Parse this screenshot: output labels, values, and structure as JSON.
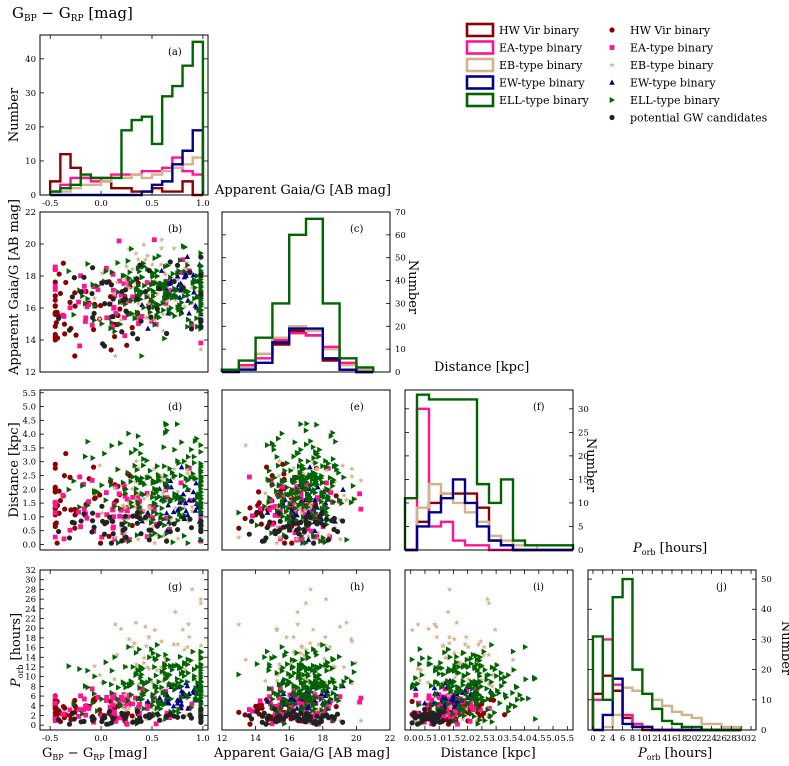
{
  "colors": {
    "hw": "#8b0000",
    "ea": "#ff1493",
    "eb": "#d2b48c",
    "ew": "#00008b",
    "ell": "#006400",
    "gw": "#222222"
  },
  "legend": {
    "hist": [
      "HW Vir binary",
      "EA-type binary",
      "EB-type binary",
      "EW-type binary",
      "ELL-type binary"
    ],
    "scatter": [
      "HW Vir binary",
      "EA-type binary",
      "EB-type binary",
      "EW-type binary",
      "ELL-type binary",
      "potential GW candidates"
    ]
  },
  "labels": {
    "top_title": "G_BP - G_RP [mag]",
    "col2_title": "Apparent Gaia/G [AB mag]",
    "col3_title": "Distance [kpc]",
    "col4_title": "P_orb [hours]",
    "ylabel_number": "Number",
    "ylabel_gmag": "Apparent Gaia/G [AB mag]",
    "ylabel_dist": "Distance [kpc]",
    "ylabel_porb": "P_orb [hours]",
    "xlabel_color": "G_BP - G_RP [mag]",
    "xlabel_gmag": "Apparent Gaia/G [AB mag]",
    "xlabel_dist": "Distance [kpc]",
    "xlabel_porb": "P_orb [hours]"
  },
  "chart_data": [
    {
      "panel": "(a)",
      "type": "histogram",
      "x_range": [
        -0.6,
        1.05
      ],
      "y_range": [
        0,
        47
      ],
      "x_ticks": [
        "-0.5",
        "0.0",
        "0.5",
        "1.0"
      ],
      "y_ticks": [
        "0",
        "10",
        "20",
        "30",
        "40"
      ],
      "bin_edges": [
        -0.5,
        -0.4,
        -0.3,
        -0.2,
        -0.1,
        0.0,
        0.1,
        0.2,
        0.3,
        0.4,
        0.5,
        0.6,
        0.7,
        0.8,
        0.9,
        1.0
      ],
      "series": [
        {
          "key": "hw",
          "values": [
            4,
            12,
            8,
            5,
            5,
            4,
            2,
            2,
            1,
            1,
            2,
            1,
            1,
            4,
            0
          ]
        },
        {
          "key": "ea",
          "values": [
            1,
            3,
            5,
            5,
            4,
            5,
            6,
            6,
            6,
            7,
            7,
            8,
            11,
            7,
            6
          ]
        },
        {
          "key": "eb",
          "values": [
            1,
            1,
            2,
            3,
            3,
            4,
            5,
            5,
            6,
            5,
            6,
            7,
            8,
            9,
            11
          ]
        },
        {
          "key": "ew",
          "values": [
            0,
            0,
            0,
            0,
            0,
            0,
            0,
            0,
            0,
            1,
            3,
            4,
            9,
            13,
            19
          ]
        },
        {
          "key": "ell",
          "values": [
            1,
            2,
            3,
            6,
            5,
            5,
            5,
            19,
            22,
            23,
            15,
            29,
            32,
            38,
            45
          ]
        }
      ]
    },
    {
      "panel": "(b)",
      "type": "scatter",
      "x_range": [
        -0.6,
        1.05
      ],
      "y_range": [
        12,
        22
      ],
      "x_ticks": [],
      "y_ticks": [
        "12",
        "14",
        "16",
        "18",
        "20",
        "22"
      ]
    },
    {
      "panel": "(c)",
      "type": "histogram",
      "x_range": [
        12,
        22
      ],
      "y_range": [
        0,
        70
      ],
      "x_ticks": [],
      "y_ticks": [
        "0",
        "10",
        "20",
        "30",
        "40",
        "50",
        "60",
        "70"
      ],
      "bin_edges": [
        12,
        13,
        14,
        15,
        16,
        17,
        18,
        19,
        20,
        21
      ],
      "series": [
        {
          "key": "hw",
          "values": [
            1,
            3,
            8,
            12,
            18,
            16,
            5,
            1,
            0
          ]
        },
        {
          "key": "ea",
          "values": [
            1,
            3,
            6,
            14,
            17,
            16,
            11,
            4,
            1
          ]
        },
        {
          "key": "eb",
          "values": [
            1,
            2,
            8,
            15,
            20,
            18,
            10,
            3,
            1
          ]
        },
        {
          "key": "ew",
          "values": [
            0,
            1,
            4,
            13,
            19,
            19,
            6,
            1,
            0
          ]
        },
        {
          "key": "ell",
          "values": [
            1,
            5,
            15,
            30,
            60,
            67,
            30,
            6,
            2
          ]
        }
      ]
    },
    {
      "panel": "(d)",
      "type": "scatter",
      "x_range": [
        -0.6,
        1.05
      ],
      "y_range": [
        -0.2,
        5.6
      ],
      "x_ticks": [],
      "y_ticks": [
        "0.0",
        "0.5",
        "1.0",
        "1.5",
        "2.0",
        "2.5",
        "3.0",
        "3.5",
        "4.0",
        "4.5",
        "5.0",
        "5.5"
      ]
    },
    {
      "panel": "(e)",
      "type": "scatter",
      "x_range": [
        12,
        22
      ],
      "y_range": [
        -0.2,
        5.6
      ],
      "x_ticks": [],
      "y_ticks": []
    },
    {
      "panel": "(f)",
      "type": "histogram",
      "x_range": [
        0,
        5.6
      ],
      "y_range": [
        0,
        34
      ],
      "x_ticks": [],
      "y_ticks": [
        "0",
        "5",
        "10",
        "15",
        "20",
        "25",
        "30"
      ],
      "bin_edges": [
        0.0,
        0.4,
        0.8,
        1.2,
        1.6,
        2.0,
        2.4,
        2.8,
        3.2,
        3.6,
        4.0,
        4.4,
        4.8,
        5.2,
        5.6
      ],
      "series": [
        {
          "key": "hw",
          "values": [
            0,
            6,
            10,
            12,
            12,
            12,
            9,
            2,
            1,
            0,
            0,
            0,
            0,
            0
          ]
        },
        {
          "key": "ea",
          "values": [
            0,
            30,
            5,
            6,
            2,
            1,
            1,
            0,
            0,
            0,
            0,
            0,
            0,
            0
          ]
        },
        {
          "key": "eb",
          "values": [
            0,
            9,
            14,
            12,
            10,
            8,
            6,
            3,
            2,
            1,
            1,
            0,
            0,
            0
          ]
        },
        {
          "key": "ew",
          "values": [
            0,
            5,
            8,
            11,
            15,
            10,
            5,
            2,
            1,
            0,
            0,
            0,
            0,
            0
          ]
        },
        {
          "key": "ell",
          "values": [
            11,
            33,
            32,
            32,
            32,
            32,
            14,
            10,
            15,
            2,
            1,
            1,
            1,
            1
          ]
        }
      ]
    },
    {
      "panel": "(g)",
      "type": "scatter",
      "x_range": [
        -0.6,
        1.05
      ],
      "y_range": [
        -1,
        32
      ],
      "x_ticks": [
        "-0.5",
        "0.0",
        "0.5",
        "1.0"
      ],
      "y_ticks": [
        "0",
        "2",
        "4",
        "6",
        "8",
        "10",
        "12",
        "14",
        "16",
        "18",
        "20",
        "22",
        "24",
        "26",
        "28",
        "30",
        "32"
      ]
    },
    {
      "panel": "(h)",
      "type": "scatter",
      "x_range": [
        12,
        22
      ],
      "y_range": [
        -1,
        32
      ],
      "x_ticks": [
        "12",
        "14",
        "16",
        "18",
        "20",
        "22"
      ],
      "y_ticks": []
    },
    {
      "panel": "(i)",
      "type": "scatter",
      "x_range": [
        -0.2,
        5.7
      ],
      "y_range": [
        -1,
        32
      ],
      "x_ticks": [
        "0.0",
        "0.5",
        "1.0",
        "1.5",
        "2.0",
        "2.5",
        "3.0",
        "3.5",
        "4.0",
        "4.5",
        "5.0",
        "5.5"
      ],
      "y_ticks": []
    },
    {
      "panel": "(j)",
      "type": "histogram",
      "x_range": [
        -1,
        33
      ],
      "y_range": [
        0,
        53
      ],
      "x_ticks": [
        "0",
        "2",
        "4",
        "6",
        "8",
        "10",
        "12",
        "14",
        "16",
        "18",
        "20",
        "22",
        "24",
        "26",
        "28",
        "30",
        "32"
      ],
      "y_ticks": [
        "0",
        "10",
        "20",
        "30",
        "40",
        "50"
      ],
      "bin_edges": [
        0,
        2,
        4,
        6,
        8,
        10,
        12,
        14,
        16,
        18,
        20,
        22,
        24,
        26,
        28,
        30
      ],
      "series": [
        {
          "key": "hw",
          "values": [
            12,
            18,
            13,
            4,
            1,
            0,
            0,
            0,
            0,
            0,
            0,
            0,
            0,
            0,
            0
          ]
        },
        {
          "key": "ea",
          "values": [
            10,
            30,
            15,
            5,
            2,
            1,
            0,
            0,
            0,
            0,
            0,
            0,
            0,
            0,
            0
          ]
        },
        {
          "key": "eb",
          "values": [
            0,
            1,
            5,
            14,
            13,
            12,
            10,
            8,
            6,
            5,
            4,
            2,
            2,
            1,
            1
          ]
        },
        {
          "key": "ew",
          "values": [
            0,
            5,
            17,
            2,
            1,
            1,
            0,
            0,
            0,
            0,
            0,
            0,
            0,
            0,
            0
          ]
        },
        {
          "key": "ell",
          "values": [
            31,
            10,
            44,
            50,
            20,
            12,
            7,
            3,
            2,
            1,
            1,
            0,
            0,
            0,
            0
          ]
        }
      ]
    }
  ]
}
